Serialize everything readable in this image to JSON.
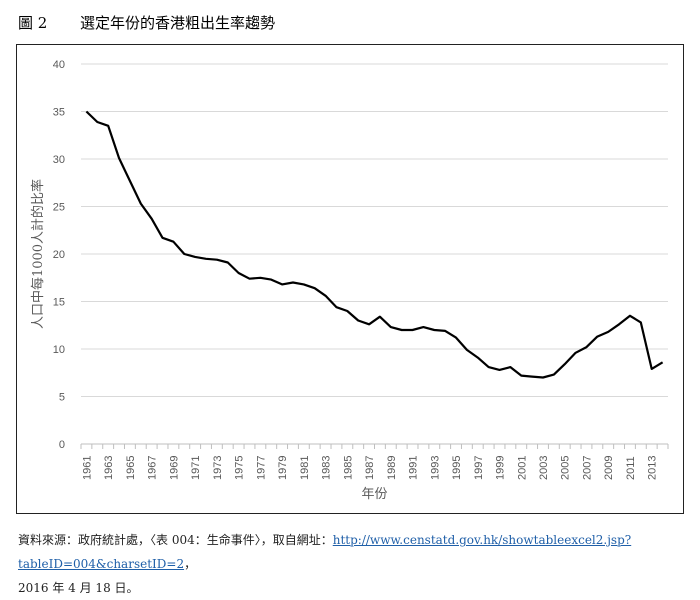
{
  "figure": {
    "number": "圖 2",
    "title": "選定年份的香港粗出生率趨勢"
  },
  "chart_data": {
    "type": "line",
    "title": "選定年份的香港粗出生率趨勢",
    "xlabel": "年份",
    "ylabel": "人口中每1000人計的比率",
    "ylim": [
      0,
      40
    ],
    "yticks": [
      0,
      5,
      10,
      15,
      20,
      25,
      30,
      35,
      40
    ],
    "grid": true,
    "x": [
      1961,
      1962,
      1963,
      1964,
      1965,
      1966,
      1967,
      1968,
      1969,
      1970,
      1971,
      1972,
      1973,
      1974,
      1975,
      1976,
      1977,
      1978,
      1979,
      1980,
      1981,
      1982,
      1983,
      1984,
      1985,
      1986,
      1987,
      1988,
      1989,
      1990,
      1991,
      1992,
      1993,
      1994,
      1995,
      1996,
      1997,
      1998,
      1999,
      2000,
      2001,
      2002,
      2003,
      2004,
      2005,
      2006,
      2007,
      2008,
      2009,
      2010,
      2011,
      2012,
      2013,
      2014
    ],
    "values": [
      35.0,
      33.9,
      33.5,
      30.1,
      27.7,
      25.3,
      23.7,
      21.7,
      21.3,
      20.0,
      19.7,
      19.5,
      19.4,
      19.1,
      18.0,
      17.4,
      17.5,
      17.3,
      16.8,
      17.0,
      16.8,
      16.4,
      15.6,
      14.4,
      14.0,
      13.0,
      12.6,
      13.4,
      12.3,
      12.0,
      12.0,
      12.3,
      12.0,
      11.9,
      11.2,
      9.9,
      9.1,
      8.1,
      7.8,
      8.1,
      7.2,
      7.1,
      7.0,
      7.3,
      8.4,
      9.6,
      10.2,
      11.3,
      11.8,
      12.6,
      13.5,
      12.8,
      7.9,
      8.6
    ],
    "xtick_labels": [
      "1961",
      "1963",
      "1965",
      "1967",
      "1969",
      "1971",
      "1973",
      "1975",
      "1977",
      "1979",
      "1981",
      "1983",
      "1985",
      "1987",
      "1989",
      "1991",
      "1993",
      "1995",
      "1997",
      "1999",
      "2001",
      "2003",
      "2005",
      "2007",
      "2009",
      "2011",
      "2013"
    ],
    "line_color": "#000000"
  },
  "source": {
    "prefix": "資料來源：政府統計處，〈表 004：生命事件〉，取自網址：",
    "url": "http://www.censtatd.gov.hk/showtableexcel2.jsp?tableID=004&charsetID=2",
    "suffix": "，",
    "date": "2016 年 4 月 18 日。"
  }
}
